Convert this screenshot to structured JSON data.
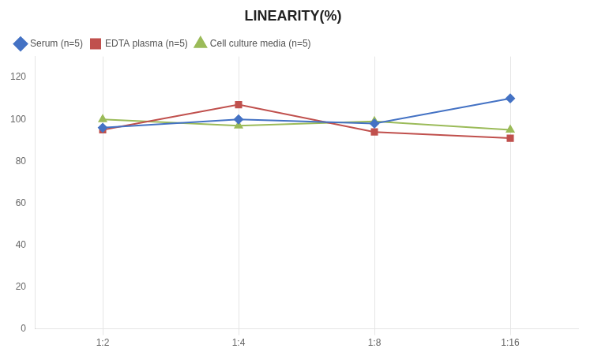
{
  "chart_data": {
    "type": "line",
    "title": "LINEARITY(%)",
    "categories": [
      "1:2",
      "1:4",
      "1:8",
      "1:16"
    ],
    "series": [
      {
        "name": "Serum (n=5)",
        "color": "#4472C4",
        "marker": "diamond",
        "values": [
          96,
          100,
          98,
          110
        ]
      },
      {
        "name": "EDTA plasma (n=5)",
        "color": "#C0504D",
        "marker": "square",
        "values": [
          95,
          107,
          94,
          91
        ]
      },
      {
        "name": "Cell culture media (n=5)",
        "color": "#9BBB59",
        "marker": "triangle",
        "values": [
          100,
          97,
          99,
          95
        ]
      }
    ],
    "ylim": [
      0,
      130
    ],
    "yticks": [
      0,
      20,
      40,
      60,
      80,
      100,
      120
    ],
    "grid": "x",
    "legend": "upper left"
  }
}
